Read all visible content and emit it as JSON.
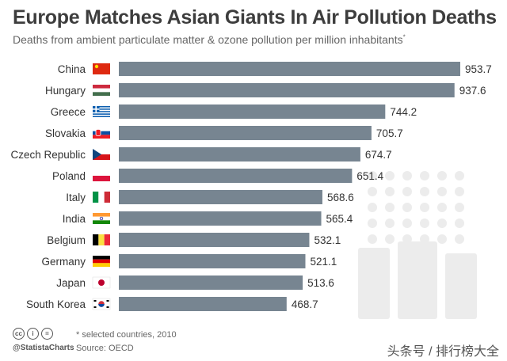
{
  "header": {
    "title": "Europe Matches Asian Giants In Air Pollution Deaths",
    "subtitle": "Deaths from ambient particulate matter & ozone pollution per million inhabitants",
    "subtitle_mark": "*"
  },
  "chart_data": {
    "type": "bar",
    "orientation": "horizontal",
    "title": "Europe Matches Asian Giants In Air Pollution Deaths",
    "subtitle": "Deaths from ambient particulate matter & ozone pollution per million inhabitants*",
    "categories": [
      "China",
      "Hungary",
      "Greece",
      "Slovakia",
      "Czech Republic",
      "Poland",
      "Italy",
      "India",
      "Belgium",
      "Germany",
      "Japan",
      "South Korea"
    ],
    "values": [
      953.7,
      937.6,
      744.2,
      705.7,
      674.7,
      651.4,
      568.6,
      565.4,
      532.1,
      521.1,
      513.6,
      468.7
    ],
    "value_labels": [
      "953.7",
      "937.6",
      "744.2",
      "705.7",
      "674.7",
      "651.4",
      "568.6",
      "565.4",
      "532.1",
      "521.1",
      "513.6",
      "468.7"
    ],
    "flags": [
      "china-flag-icon",
      "hungary-flag-icon",
      "greece-flag-icon",
      "slovakia-flag-icon",
      "czech-flag-icon",
      "poland-flag-icon",
      "italy-flag-icon",
      "india-flag-icon",
      "belgium-flag-icon",
      "germany-flag-icon",
      "japan-flag-icon",
      "south-korea-flag-icon"
    ],
    "xlim": [
      0,
      953.7
    ],
    "bar_color": "#778591",
    "grid": false,
    "legend": "none"
  },
  "footer": {
    "cc_icons": [
      "cc",
      "i",
      "="
    ],
    "brand": "@StatistaCharts",
    "note": "* selected countries, 2010",
    "source": "Source: OECD",
    "watermark": "头条号 / 排行榜大全"
  }
}
